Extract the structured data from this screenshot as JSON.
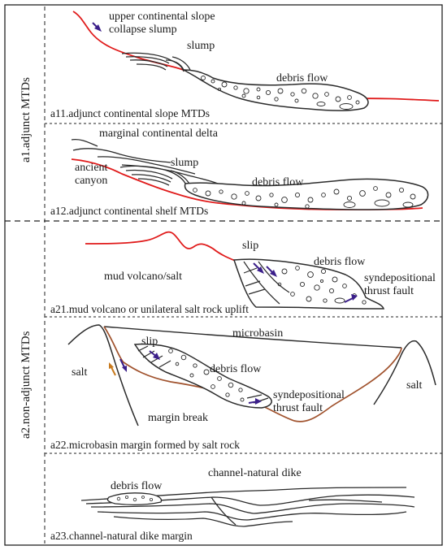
{
  "colors": {
    "outline": "#2b2b2b",
    "base_red": "#e01b1b",
    "base_brown": "#a0522d",
    "arrow_purple": "#3b1f8a",
    "arrow_orange": "#c87a1e",
    "frame": "#222222"
  },
  "groups": {
    "a1": "a1.adjunct MTDs",
    "a2": "a2.non-adjunct MTDs"
  },
  "panels": {
    "a11": {
      "caption": "a11.adjunct continental slope MTDs",
      "labels": {
        "upper1": "upper continental slope",
        "upper2": "collapse slump",
        "slump": "slump",
        "debris": "debris flow"
      }
    },
    "a12": {
      "caption": "a12.adjunct continental shelf MTDs",
      "labels": {
        "delta": "marginal continental delta",
        "canyon1": "ancient",
        "canyon2": "canyon",
        "slump": "slump",
        "debris": "debris flow"
      }
    },
    "a21": {
      "caption": "a21.mud volcano or unilateral salt rock uplift",
      "labels": {
        "mud": "mud volcano/salt",
        "slip": "slip",
        "debris": "debris flow",
        "thrust1": "syndepositional",
        "thrust2": "thrust fault"
      }
    },
    "a22": {
      "caption": "a22.microbasin margin formed by salt rock",
      "labels": {
        "microbasin": "microbasin",
        "salt_left": "salt",
        "salt_right": "salt",
        "slip": "slip",
        "debris": "debris flow",
        "thrust1": "syndepositional",
        "thrust2": "thrust fault",
        "margin": "margin break"
      }
    },
    "a23": {
      "caption": "a23.channel-natural dike margin",
      "labels": {
        "debris": "debris flow",
        "channel": "channel-natural dike"
      }
    }
  }
}
